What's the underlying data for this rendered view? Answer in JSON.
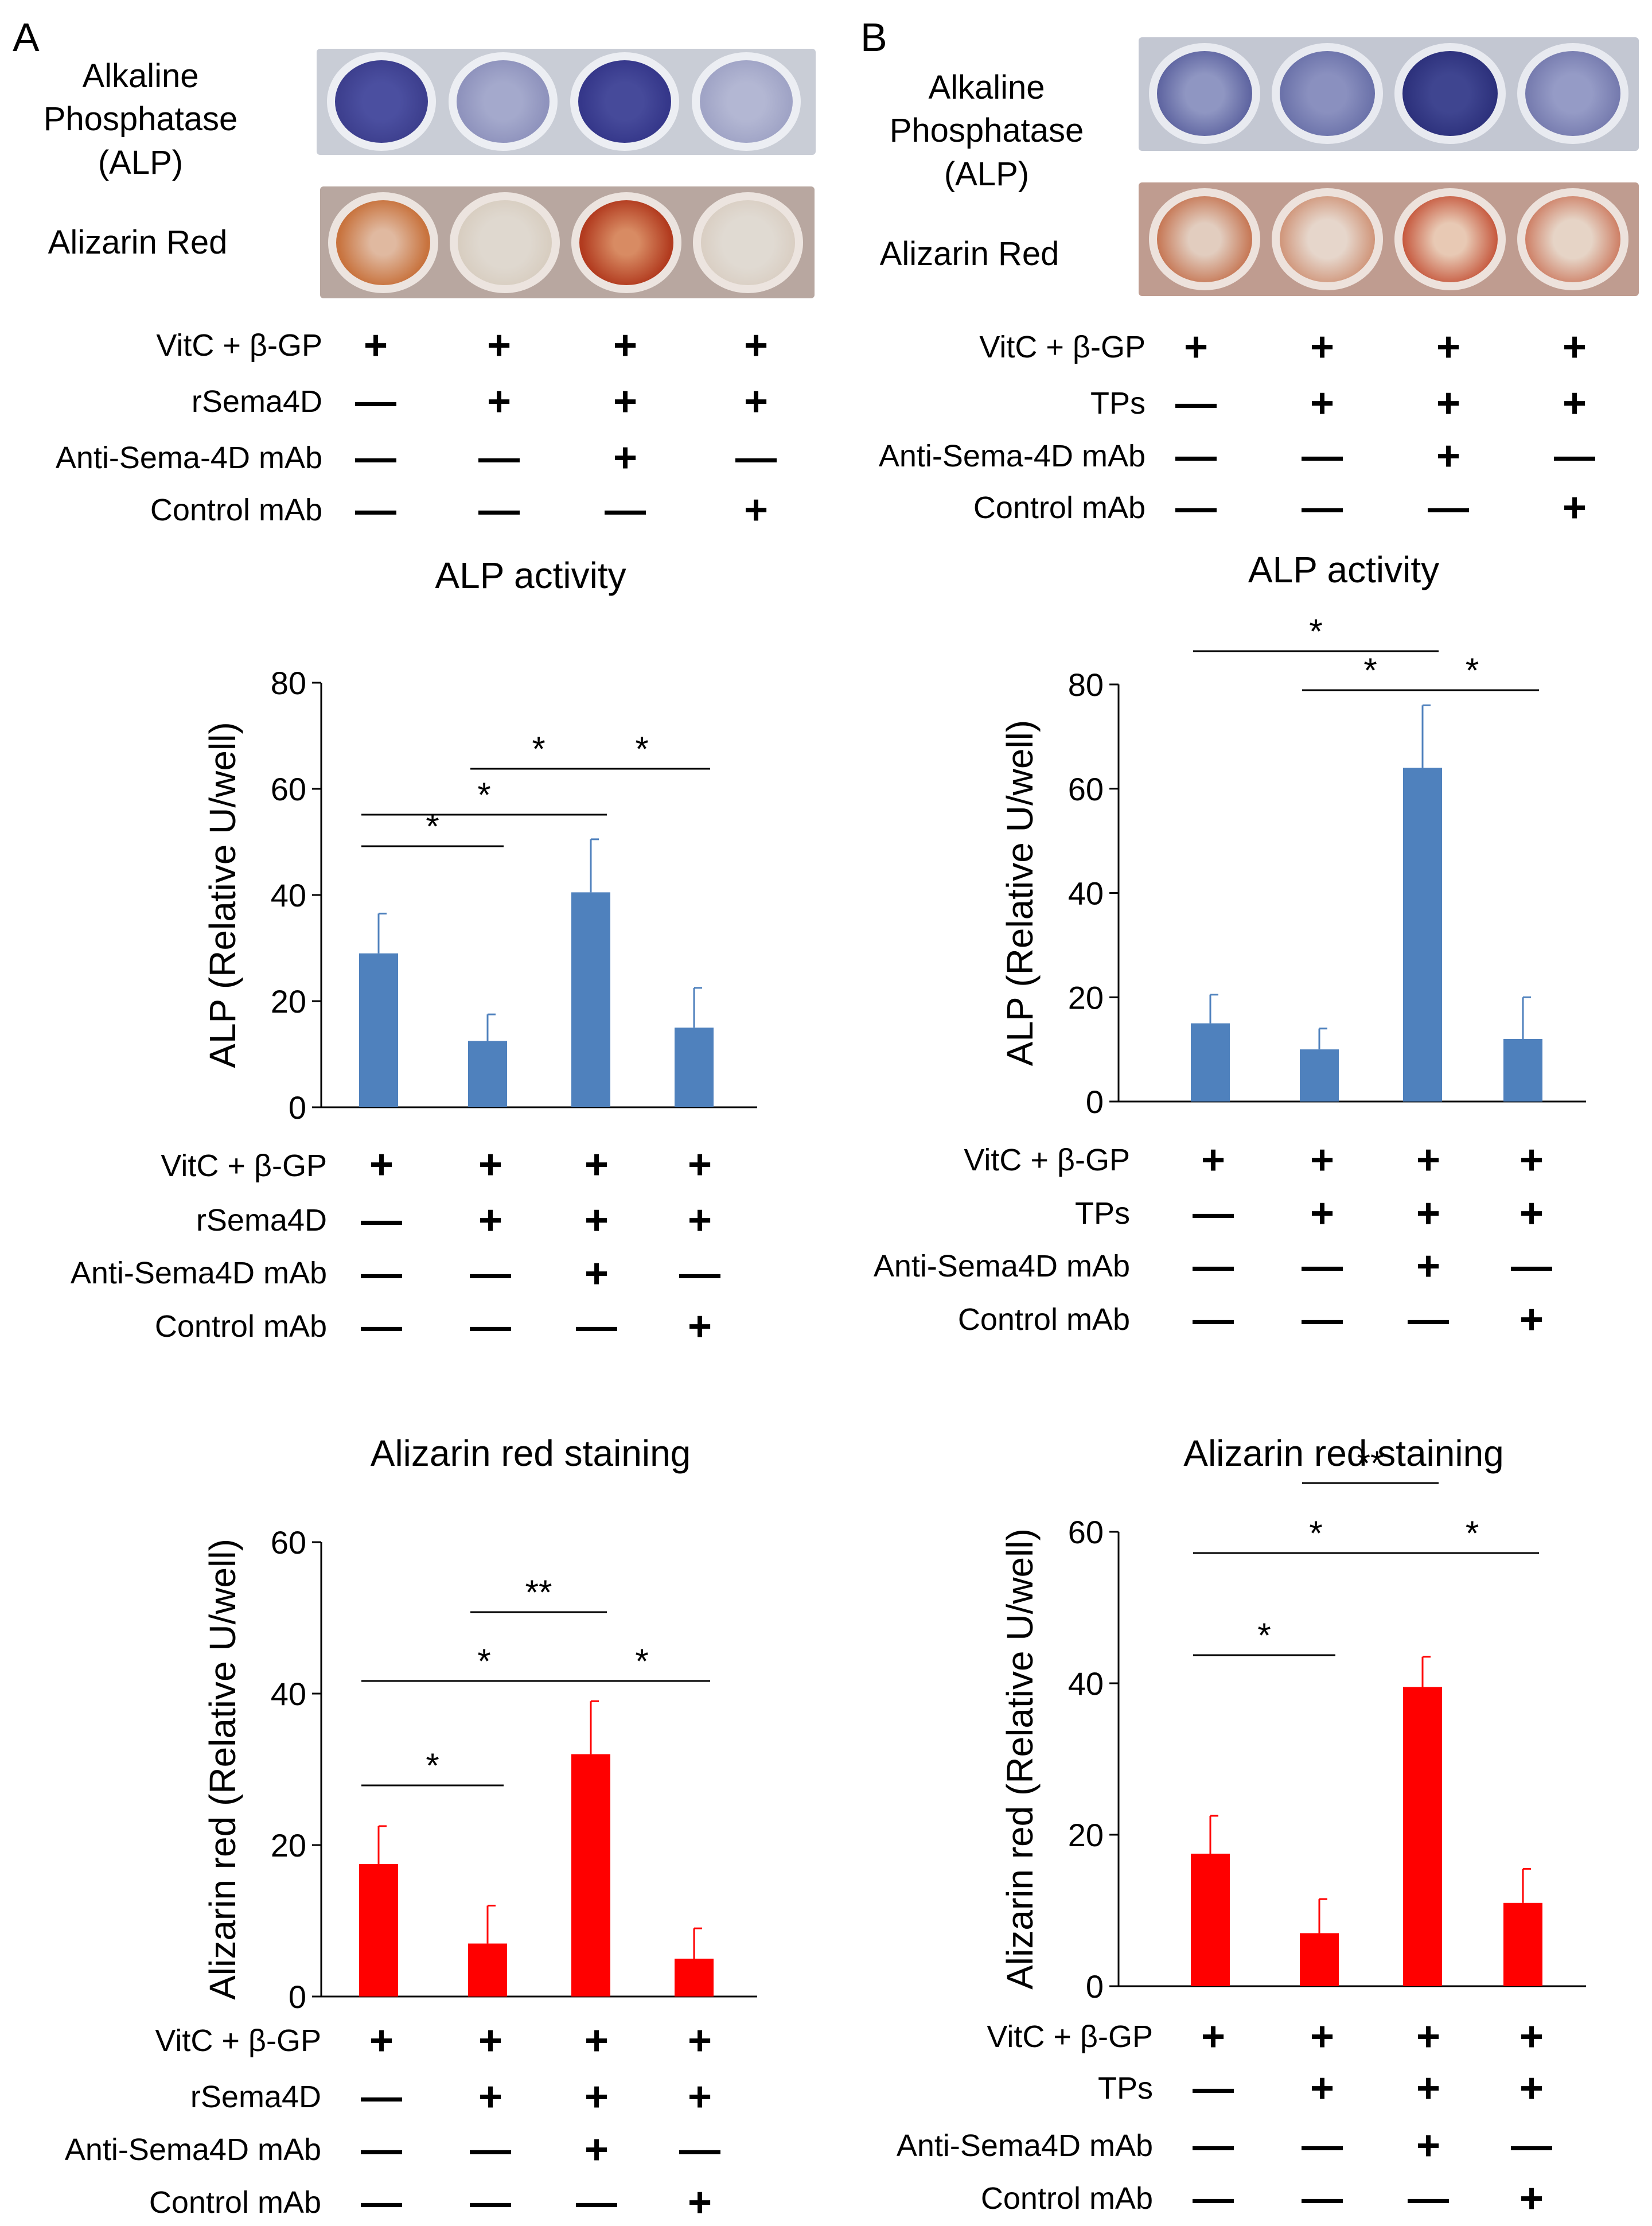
{
  "panels": [
    {
      "letter": "A",
      "stain_labels": {
        "alp": "Alkaline\nPhosphatase\n(ALP)",
        "alizarin": "Alizarin Red"
      },
      "condition_table_top": {
        "rows": [
          {
            "label": "VitC + β-GP",
            "marks": [
              "+",
              "+",
              "+",
              "+"
            ]
          },
          {
            "label": "rSema4D",
            "marks": [
              "—",
              "+",
              "+",
              "+"
            ]
          },
          {
            "label": "Anti-Sema-4D mAb",
            "marks": [
              "—",
              "—",
              "+",
              "—"
            ]
          },
          {
            "label": "Control mAb",
            "marks": [
              "—",
              "—",
              "—",
              "+"
            ]
          }
        ]
      },
      "condition_table_alp": {
        "rows": [
          {
            "label": "VitC + β-GP",
            "marks": [
              "+",
              "+",
              "+",
              "+"
            ]
          },
          {
            "label": "rSema4D",
            "marks": [
              "—",
              "+",
              "+",
              "+"
            ]
          },
          {
            "label": "Anti-Sema4D mAb",
            "marks": [
              "—",
              "—",
              "+",
              "—"
            ]
          },
          {
            "label": "Control mAb",
            "marks": [
              "—",
              "—",
              "—",
              "+"
            ]
          }
        ]
      },
      "condition_table_ar": {
        "rows": [
          {
            "label": "VitC + β-GP",
            "marks": [
              "+",
              "+",
              "+",
              "+"
            ]
          },
          {
            "label": "rSema4D",
            "marks": [
              "—",
              "+",
              "+",
              "+"
            ]
          },
          {
            "label": "Anti-Sema4D mAb",
            "marks": [
              "—",
              "—",
              "+",
              "—"
            ]
          },
          {
            "label": "Control mAb",
            "marks": [
              "—",
              "—",
              "—",
              "+"
            ]
          }
        ]
      }
    },
    {
      "letter": "B",
      "stain_labels": {
        "alp": "Alkaline\nPhosphatase\n(ALP)",
        "alizarin": "Alizarin Red"
      },
      "condition_table_top": {
        "rows": [
          {
            "label": "VitC + β-GP",
            "marks": [
              "+",
              "+",
              "+",
              "+"
            ]
          },
          {
            "label": "TPs",
            "marks": [
              "—",
              "+",
              "+",
              "+"
            ]
          },
          {
            "label": "Anti-Sema-4D mAb",
            "marks": [
              "—",
              "—",
              "+",
              "—"
            ]
          },
          {
            "label": "Control mAb",
            "marks": [
              "—",
              "—",
              "—",
              "+"
            ]
          }
        ]
      },
      "condition_table_alp": {
        "rows": [
          {
            "label": "VitC + β-GP",
            "marks": [
              "+",
              "+",
              "+",
              "+"
            ]
          },
          {
            "label": "TPs",
            "marks": [
              "—",
              "+",
              "+",
              "+"
            ]
          },
          {
            "label": "Anti-Sema4D mAb",
            "marks": [
              "—",
              "—",
              "+",
              "—"
            ]
          },
          {
            "label": "Control mAb",
            "marks": [
              "—",
              "—",
              "—",
              "+"
            ]
          }
        ]
      },
      "condition_table_ar": {
        "rows": [
          {
            "label": "VitC + β-GP",
            "marks": [
              "+",
              "+",
              "+",
              "+"
            ]
          },
          {
            "label": "TPs",
            "marks": [
              "—",
              "+",
              "+",
              "+"
            ]
          },
          {
            "label": "Anti-Sema4D mAb",
            "marks": [
              "—",
              "—",
              "+",
              "—"
            ]
          },
          {
            "label": "Control mAb",
            "marks": [
              "—",
              "—",
              "—",
              "+"
            ]
          }
        ]
      }
    }
  ],
  "colors": {
    "alp_bar": "#4f81bd",
    "alizarin_bar": "#ff0000"
  },
  "chart_data": [
    {
      "id": "A-alp",
      "type": "bar",
      "title": "ALP activity",
      "xlabel": "",
      "ylabel": "ALP (Relative U/well)",
      "ylim": [
        0,
        80
      ],
      "yticks": [
        0,
        20,
        40,
        60,
        80
      ],
      "values": [
        29,
        12.5,
        40.5,
        15
      ],
      "errors": [
        7.5,
        5,
        10,
        7.5
      ],
      "significance": [
        {
          "from": 0,
          "to": 1,
          "label": "*"
        },
        {
          "from": 0,
          "to": 2,
          "label": "*"
        },
        {
          "from": 1,
          "to": 2,
          "label": "*"
        },
        {
          "from": 2,
          "to": 3,
          "label": "*"
        }
      ]
    },
    {
      "id": "A-ar",
      "type": "bar",
      "title": "Alizarin red staining",
      "xlabel": "",
      "ylabel": "Alizarin red (Relative U/well)",
      "ylim": [
        0,
        60
      ],
      "yticks": [
        0,
        20,
        40,
        60
      ],
      "values": [
        17.5,
        7,
        32,
        5
      ],
      "errors": [
        5,
        5,
        7,
        4
      ],
      "significance": [
        {
          "from": 0,
          "to": 1,
          "label": "*"
        },
        {
          "from": 0,
          "to": 2,
          "label": "*"
        },
        {
          "from": 1,
          "to": 2,
          "label": "**"
        },
        {
          "from": 2,
          "to": 3,
          "label": "*"
        }
      ]
    },
    {
      "id": "B-alp",
      "type": "bar",
      "title": "ALP activity",
      "xlabel": "",
      "ylabel": "ALP (Relative U/well)",
      "ylim": [
        0,
        80
      ],
      "yticks": [
        0,
        20,
        40,
        60,
        80
      ],
      "values": [
        15,
        10,
        64,
        12
      ],
      "errors": [
        5.5,
        4,
        12,
        8
      ],
      "significance": [
        {
          "from": 0,
          "to": 2,
          "label": "*"
        },
        {
          "from": 1,
          "to": 2,
          "label": "*"
        },
        {
          "from": 2,
          "to": 3,
          "label": "*"
        }
      ]
    },
    {
      "id": "B-ar",
      "type": "bar",
      "title": "Alizarin red staining",
      "xlabel": "",
      "ylabel": "Alizarin red (Relative U/well)",
      "ylim": [
        0,
        60
      ],
      "yticks": [
        0,
        20,
        40,
        60
      ],
      "values": [
        17.5,
        7,
        39.5,
        11
      ],
      "errors": [
        5,
        4.5,
        4,
        4.5
      ],
      "significance": [
        {
          "from": 0,
          "to": 1,
          "label": "*"
        },
        {
          "from": 0,
          "to": 2,
          "label": "*"
        },
        {
          "from": 1,
          "to": 2,
          "label": "**"
        },
        {
          "from": 2,
          "to": 3,
          "label": "*"
        }
      ]
    }
  ]
}
